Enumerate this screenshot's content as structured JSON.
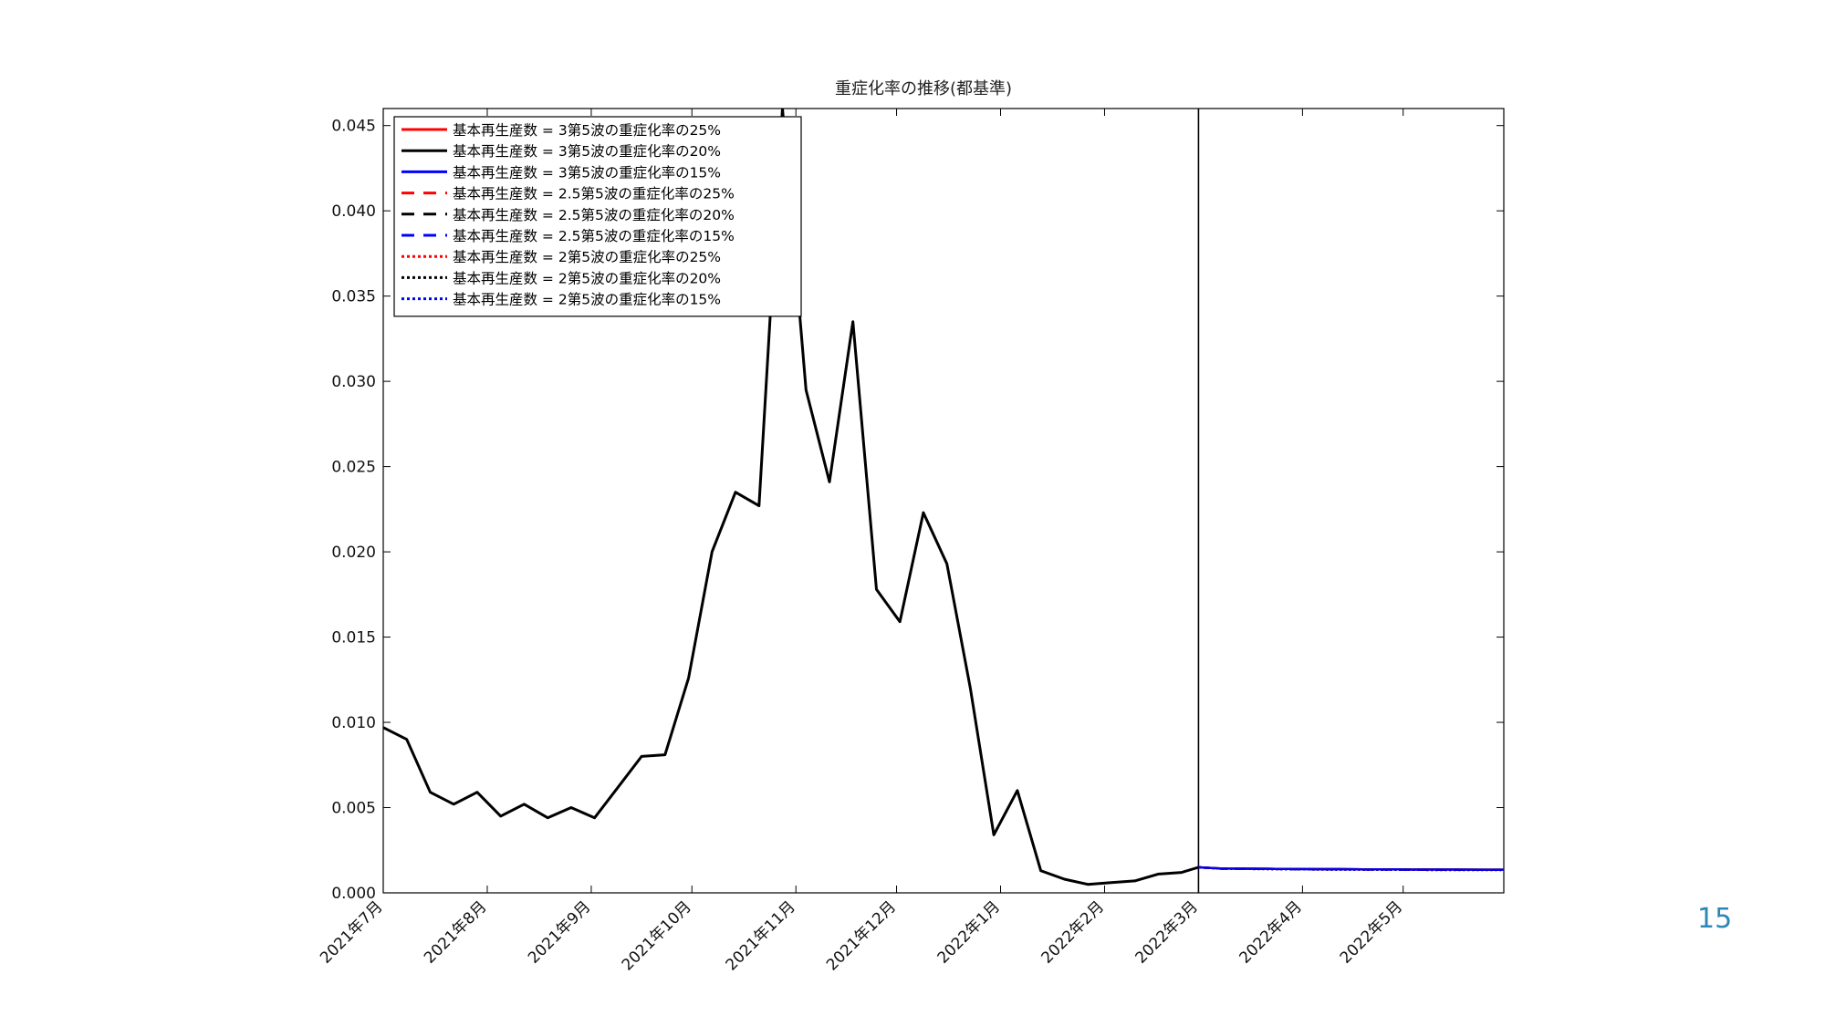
{
  "page_number": "15",
  "colors": {
    "black": "#000000",
    "red": "#ff0000",
    "blue": "#0000ff",
    "page_number": "#2e86b8"
  },
  "chart_data": {
    "type": "line",
    "title": "重症化率の推移(都基準)",
    "xlabel": "",
    "ylabel": "",
    "x_range": [
      "2021-07-01",
      "2022-05-31"
    ],
    "ylim": [
      0,
      0.046
    ],
    "grid": false,
    "legend_position": "top-left",
    "y_ticks": [
      "0.000",
      "0.005",
      "0.010",
      "0.015",
      "0.020",
      "0.025",
      "0.030",
      "0.035",
      "0.040",
      "0.045"
    ],
    "x_ticks": [
      {
        "label": "2021年7月",
        "date": "2021-07-01"
      },
      {
        "label": "2021年8月",
        "date": "2021-08-01"
      },
      {
        "label": "2021年9月",
        "date": "2021-09-01"
      },
      {
        "label": "2021年10月",
        "date": "2021-10-01"
      },
      {
        "label": "2021年11月",
        "date": "2021-11-01"
      },
      {
        "label": "2021年12月",
        "date": "2021-12-01"
      },
      {
        "label": "2022年1月",
        "date": "2022-01-01"
      },
      {
        "label": "2022年2月",
        "date": "2022-02-01"
      },
      {
        "label": "2022年3月",
        "date": "2022-03-01"
      },
      {
        "label": "2022年4月",
        "date": "2022-04-01"
      },
      {
        "label": "2022年5月",
        "date": "2022-05-01"
      }
    ],
    "vertical_line": "2022-03-01",
    "observed": {
      "x": [
        "2021-07-01",
        "2021-07-08",
        "2021-07-15",
        "2021-07-22",
        "2021-07-29",
        "2021-08-05",
        "2021-08-12",
        "2021-08-19",
        "2021-08-26",
        "2021-09-02",
        "2021-09-09",
        "2021-09-16",
        "2021-09-23",
        "2021-09-30",
        "2021-10-07",
        "2021-10-14",
        "2021-10-21",
        "2021-10-28",
        "2021-11-04",
        "2021-11-11",
        "2021-11-18",
        "2021-11-25",
        "2021-12-02",
        "2021-12-09",
        "2021-12-16",
        "2021-12-23",
        "2021-12-30",
        "2022-01-06",
        "2022-01-13",
        "2022-01-20",
        "2022-01-27",
        "2022-02-03",
        "2022-02-10",
        "2022-02-17",
        "2022-02-24",
        "2022-03-01"
      ],
      "y": [
        0.0097,
        0.009,
        0.0059,
        0.0052,
        0.0059,
        0.0045,
        0.0052,
        0.0044,
        0.005,
        0.0044,
        0.0062,
        0.008,
        0.0081,
        0.0126,
        0.02,
        0.0235,
        0.0227,
        0.046,
        0.0295,
        0.0241,
        0.0335,
        0.0178,
        0.0159,
        0.0223,
        0.0193,
        0.012,
        0.0034,
        0.006,
        0.0013,
        0.0008,
        0.0005,
        0.0006,
        0.0007,
        0.0011,
        0.0012,
        0.0015
      ]
    },
    "projection_x": [
      "2022-03-01",
      "2022-03-08",
      "2022-03-15",
      "2022-03-22",
      "2022-03-29",
      "2022-04-05",
      "2022-04-12",
      "2022-04-19",
      "2022-04-26",
      "2022-05-03",
      "2022-05-10",
      "2022-05-17",
      "2022-05-24",
      "2022-05-31"
    ],
    "series": [
      {
        "name": "基本再生産数 = 3第5波の重症化率の25%",
        "color": "red",
        "dash": "solid",
        "values": [
          0.0015,
          0.00143,
          0.00142,
          0.00141,
          0.0014,
          0.00139,
          0.00139,
          0.00138,
          0.00138,
          0.00137,
          0.00137,
          0.00137,
          0.00136,
          0.00136
        ]
      },
      {
        "name": "基本再生産数 = 3第5波の重症化率の20%",
        "color": "black",
        "dash": "solid",
        "values": [
          0.0015,
          0.00143,
          0.00142,
          0.00141,
          0.0014,
          0.00139,
          0.00139,
          0.00138,
          0.00138,
          0.00137,
          0.00137,
          0.00137,
          0.00136,
          0.00136
        ]
      },
      {
        "name": "基本再生産数 = 3第5波の重症化率の15%",
        "color": "blue",
        "dash": "solid",
        "values": [
          0.0015,
          0.00143,
          0.00142,
          0.00141,
          0.0014,
          0.00139,
          0.00139,
          0.00138,
          0.00138,
          0.00137,
          0.00137,
          0.00137,
          0.00136,
          0.00136
        ]
      },
      {
        "name": "基本再生産数 = 2.5第5波の重症化率の25%",
        "color": "red",
        "dash": "dashed",
        "values": [
          0.0015,
          0.00142,
          0.00141,
          0.0014,
          0.00139,
          0.00138,
          0.00138,
          0.00137,
          0.00137,
          0.00136,
          0.00136,
          0.00135,
          0.00135,
          0.00135
        ]
      },
      {
        "name": "基本再生産数 = 2.5第5波の重症化率の20%",
        "color": "black",
        "dash": "dashed",
        "values": [
          0.0015,
          0.00142,
          0.00141,
          0.0014,
          0.00139,
          0.00138,
          0.00138,
          0.00137,
          0.00137,
          0.00136,
          0.00136,
          0.00135,
          0.00135,
          0.00135
        ]
      },
      {
        "name": "基本再生産数 = 2.5第5波の重症化率の15%",
        "color": "blue",
        "dash": "dashed",
        "values": [
          0.0015,
          0.00142,
          0.00141,
          0.0014,
          0.00139,
          0.00138,
          0.00138,
          0.00137,
          0.00137,
          0.00136,
          0.00136,
          0.00135,
          0.00135,
          0.00135
        ]
      },
      {
        "name": "基本再生産数 = 2第5波の重症化率の25%",
        "color": "red",
        "dash": "dotted",
        "values": [
          0.0015,
          0.00141,
          0.0014,
          0.00139,
          0.00138,
          0.00137,
          0.00136,
          0.00136,
          0.00135,
          0.00135,
          0.00134,
          0.00134,
          0.00134,
          0.00134
        ]
      },
      {
        "name": "基本再生産数 = 2第5波の重症化率の20%",
        "color": "black",
        "dash": "dotted",
        "values": [
          0.0015,
          0.00141,
          0.0014,
          0.00139,
          0.00138,
          0.00137,
          0.00136,
          0.00136,
          0.00135,
          0.00135,
          0.00134,
          0.00134,
          0.00134,
          0.00134
        ]
      },
      {
        "name": "基本再生産数 = 2第5波の重症化率の15%",
        "color": "blue",
        "dash": "dotted",
        "values": [
          0.0015,
          0.00141,
          0.0014,
          0.00139,
          0.00138,
          0.00137,
          0.00136,
          0.00136,
          0.00135,
          0.00135,
          0.00134,
          0.00134,
          0.00134,
          0.00134
        ]
      }
    ]
  }
}
